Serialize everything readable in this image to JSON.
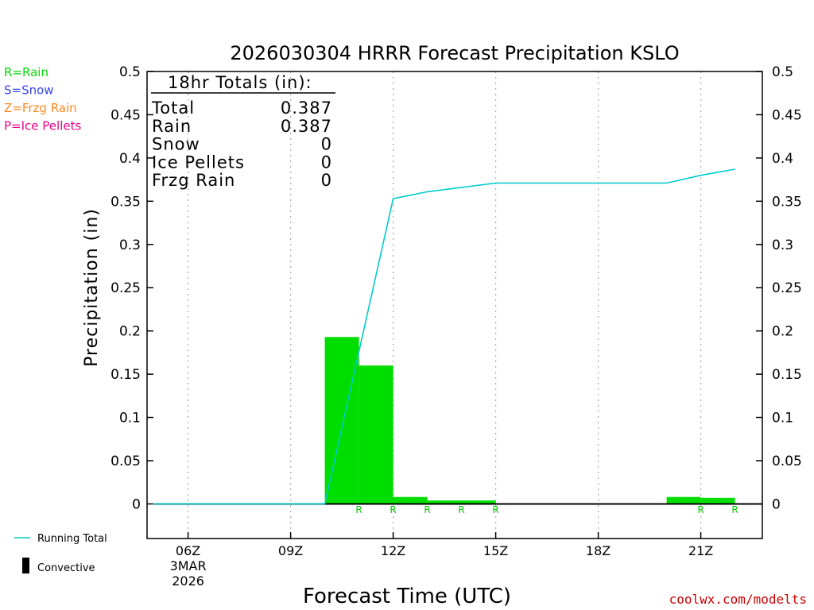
{
  "chart_data": {
    "type": "bar",
    "title": "2026030304 HRRR Forecast Precipitation KSLO",
    "xlabel": "Forecast Time (UTC)",
    "ylabel": "Precipitation (in)",
    "ylim": [
      -0.04,
      0.5
    ],
    "y_ticks": [
      "0.5",
      "0.45",
      "0.4",
      "0.35",
      "0.3",
      "0.25",
      "0.2",
      "0.15",
      "0.1",
      "0.05",
      "0"
    ],
    "x_range_hours": [
      4.8,
      22.8
    ],
    "x_ticks": [
      {
        "hour": 6,
        "label": "06Z",
        "sub1": "3MAR",
        "sub2": "2026"
      },
      {
        "hour": 9,
        "label": "09Z"
      },
      {
        "hour": 12,
        "label": "12Z"
      },
      {
        "hour": 15,
        "label": "15Z"
      },
      {
        "hour": 18,
        "label": "18Z"
      },
      {
        "hour": 21,
        "label": "21Z"
      }
    ],
    "series": [
      {
        "name": "Rain",
        "color": "#00dd00",
        "bars": [
          {
            "hour": 11,
            "value": 0.193,
            "ptype": "R"
          },
          {
            "hour": 12,
            "value": 0.16,
            "ptype": "R"
          },
          {
            "hour": 13,
            "value": 0.008,
            "ptype": "R"
          },
          {
            "hour": 14,
            "value": 0.004,
            "ptype": "R"
          },
          {
            "hour": 15,
            "value": 0.004,
            "ptype": "R"
          },
          {
            "hour": 21,
            "value": 0.008,
            "ptype": "R"
          },
          {
            "hour": 22,
            "value": 0.007,
            "ptype": "R"
          }
        ]
      },
      {
        "name": "Running Total",
        "color": "#00cccc",
        "points": [
          {
            "hour": 5,
            "value": 0
          },
          {
            "hour": 10,
            "value": 0
          },
          {
            "hour": 12,
            "value": 0.353
          },
          {
            "hour": 13,
            "value": 0.361
          },
          {
            "hour": 15,
            "value": 0.371
          },
          {
            "hour": 20,
            "value": 0.371
          },
          {
            "hour": 21,
            "value": 0.38
          },
          {
            "hour": 22,
            "value": 0.387
          }
        ]
      }
    ],
    "zero_line_hours": [
      5,
      22.8
    ],
    "grid": "vertical-dotted"
  },
  "totals_box": {
    "header": "18hr Totals (in):",
    "rows": [
      {
        "label": "Total",
        "value": "0.387"
      },
      {
        "label": "Rain",
        "value": "0.387"
      },
      {
        "label": "Snow",
        "value": "0"
      },
      {
        "label": "Ice Pellets",
        "value": "0"
      },
      {
        "label": "Frzg Rain",
        "value": "0"
      }
    ]
  },
  "ptype_legend": [
    {
      "text": "R=Rain",
      "color": "#00dd00"
    },
    {
      "text": "S=Snow",
      "color": "#3344ee"
    },
    {
      "text": "Z=Frzg Rain",
      "color": "#ff8822"
    },
    {
      "text": "P=Ice Pellets",
      "color": "#ee0088"
    }
  ],
  "bottom_legend": {
    "running_total": "Running Total",
    "convective": "Convective",
    "running_total_color": "#00cccc"
  },
  "credit": "coolwx.com/modelts"
}
